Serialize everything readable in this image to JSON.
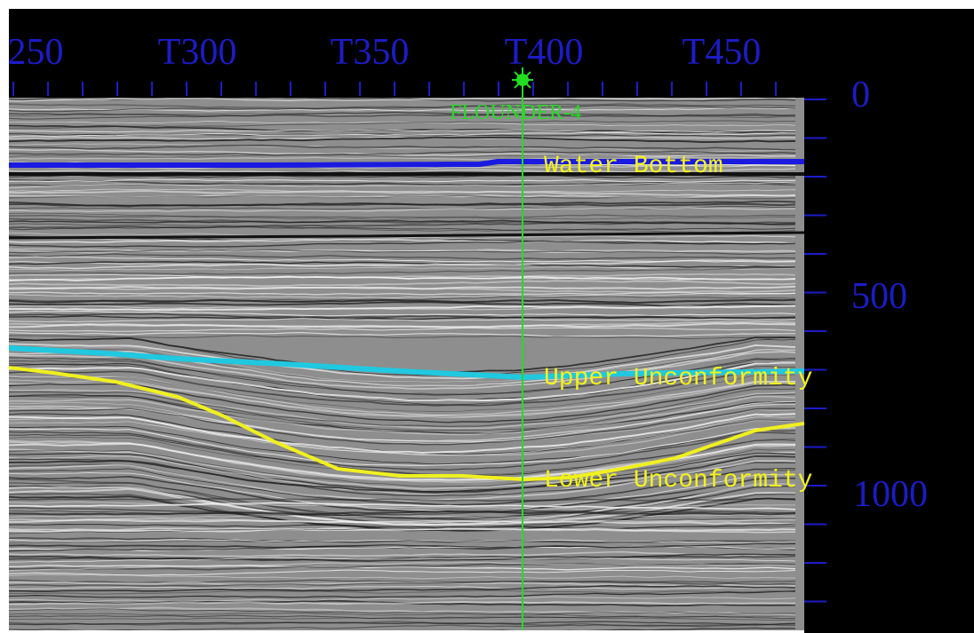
{
  "top_axis": {
    "labels": [
      "250",
      "T300",
      "T350",
      "T400",
      "T450"
    ]
  },
  "right_axis": {
    "labels": [
      "0",
      "500",
      "1000"
    ]
  },
  "well": {
    "name": "FLOUNDER-4"
  },
  "horizons": [
    {
      "name": "Water Bottom"
    },
    {
      "name": "Upper Unconformity"
    },
    {
      "name": "Lower Unconformity"
    }
  ]
}
